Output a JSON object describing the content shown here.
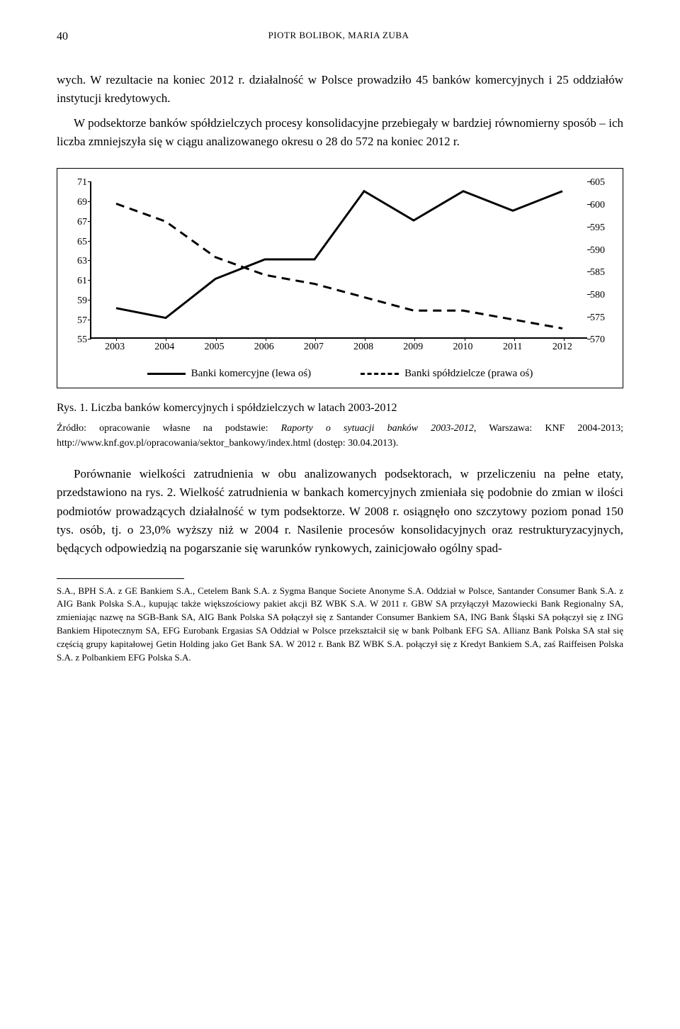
{
  "header": {
    "page_number": "40",
    "running": "PIOTR BOLIBOK, MARIA ZUBA"
  },
  "para1": "wych. W rezultacie na koniec 2012 r. działalność w Polsce prowadziło 45 banków komercyjnych i 25 oddziałów instytucji kredytowych.",
  "para2": "W podsektorze banków spółdzielczych procesy konsolidacyjne przebiegały w bardziej równomierny sposób – ich liczba zmniejszyła się w ciągu analizowanego okresu o 28 do 572 na koniec 2012 r.",
  "chart": {
    "type": "dual-axis-line",
    "categories": [
      "2003",
      "2004",
      "2005",
      "2006",
      "2007",
      "2008",
      "2009",
      "2010",
      "2011",
      "2012"
    ],
    "left_axis": {
      "min": 55,
      "max": 71,
      "step": 2,
      "label": "",
      "series_name": "Banki komercyjne (lewa oś)",
      "values": [
        58,
        57,
        61,
        63,
        63,
        70,
        67,
        70,
        68,
        70
      ],
      "color": "#000000",
      "line_width": 3,
      "dash": false
    },
    "right_axis": {
      "min": 570,
      "max": 605,
      "step": 5,
      "label": "",
      "series_name": "Banki spółdzielcze (prawa oś)",
      "values": [
        600,
        596,
        588,
        584,
        582,
        579,
        576,
        576,
        574,
        572
      ],
      "color": "#000000",
      "line_width": 3,
      "dash": true
    },
    "background_color": "#ffffff",
    "border_color": "#000000",
    "fontsize": 14
  },
  "figure": {
    "caption": "Rys. 1. Liczba banków komercyjnych i spółdzielczych w latach 2003-2012",
    "source_prefix": "Źródło: opracowanie własne na podstawie: ",
    "source_italic": "Raporty o sytuacji banków 2003-2012",
    "source_suffix": ", Warszawa: KNF 2004-2013; http://www.knf.gov.pl/opracowania/sektor_bankowy/index.html (dostęp: 30.04.2013)."
  },
  "para3": "Porównanie wielkości zatrudnienia w obu analizowanych podsektorach, w przeliczeniu na pełne etaty, przedstawiono na rys. 2. Wielkość zatrudnienia w bankach komercyjnych zmieniała się podobnie do zmian w ilości podmiotów prowadzących działalność w tym podsektorze. W 2008 r. osiągnęło ono szczytowy poziom ponad 150 tys. osób, tj. o 23,0% wyższy niż w 2004 r. Nasilenie procesów konsolidacyjnych oraz restrukturyzacyjnych, będących odpowiedzią na pogarszanie się warunków rynkowych, zainicjowało ogólny spad-",
  "footnote": "S.A., BPH S.A. z GE Bankiem S.A., Cetelem Bank S.A. z Sygma Banque Societe Anonyme S.A. Oddział w Polsce, Santander Consumer Bank S.A. z AIG Bank Polska S.A., kupując także większościowy pakiet akcji BZ WBK S.A. W 2011 r. GBW SA przyłączył Mazowiecki Bank Regionalny SA, zmieniając nazwę na SGB-Bank SA, AIG Bank Polska SA połączył się z Santander Consumer Bankiem SA, ING Bank Śląski SA połączył się z ING Bankiem Hipotecznym SA, EFG Eurobank Ergasias SA Oddział w Polsce przekształcił się w bank Polbank EFG SA. Allianz Bank Polska SA stał się częścią grupy kapitałowej Getin Holding jako Get Bank SA. W 2012 r. Bank BZ WBK S.A. połączył się z Kredyt Bankiem S.A, zaś Raiffeisen Polska S.A. z Polbankiem EFG Polska S.A."
}
